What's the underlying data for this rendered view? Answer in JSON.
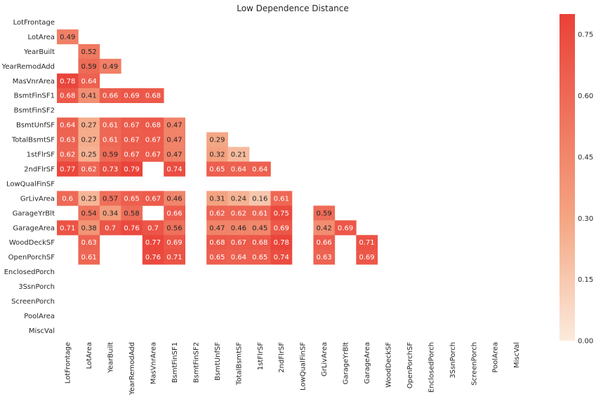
{
  "chart_data": {
    "type": "heatmap",
    "title": "Low Dependence Distance",
    "xlabel": "",
    "ylabel": "",
    "labels": [
      "LotFrontage",
      "LotArea",
      "YearBuilt",
      "YearRemodAdd",
      "MasVnrArea",
      "BsmtFinSF1",
      "BsmtFinSF2",
      "BsmtUnfSF",
      "TotalBsmtSF",
      "1stFlrSF",
      "2ndFlrSF",
      "LowQualFinSF",
      "GrLivArea",
      "GarageYrBlt",
      "GarageArea",
      "WoodDeckSF",
      "OpenPorchSF",
      "EnclosedPorch",
      "3SsnPorch",
      "ScreenPorch",
      "PoolArea",
      "MiscVal"
    ],
    "cells": [
      {
        "row": 1,
        "col": 0,
        "value": "0.49"
      },
      {
        "row": 2,
        "col": 1,
        "value": "0.52"
      },
      {
        "row": 3,
        "col": 1,
        "value": "0.59"
      },
      {
        "row": 3,
        "col": 2,
        "value": "0.49"
      },
      {
        "row": 4,
        "col": 0,
        "value": "0.78"
      },
      {
        "row": 4,
        "col": 1,
        "value": "0.64"
      },
      {
        "row": 5,
        "col": 0,
        "value": "0.68"
      },
      {
        "row": 5,
        "col": 1,
        "value": "0.41"
      },
      {
        "row": 5,
        "col": 2,
        "value": "0.66"
      },
      {
        "row": 5,
        "col": 3,
        "value": "0.69"
      },
      {
        "row": 5,
        "col": 4,
        "value": "0.68"
      },
      {
        "row": 7,
        "col": 0,
        "value": "0.64"
      },
      {
        "row": 7,
        "col": 1,
        "value": "0.27"
      },
      {
        "row": 7,
        "col": 2,
        "value": "0.61"
      },
      {
        "row": 7,
        "col": 3,
        "value": "0.67"
      },
      {
        "row": 7,
        "col": 4,
        "value": "0.68"
      },
      {
        "row": 7,
        "col": 5,
        "value": "0.47"
      },
      {
        "row": 8,
        "col": 0,
        "value": "0.63"
      },
      {
        "row": 8,
        "col": 1,
        "value": "0.27"
      },
      {
        "row": 8,
        "col": 2,
        "value": "0.61"
      },
      {
        "row": 8,
        "col": 3,
        "value": "0.67"
      },
      {
        "row": 8,
        "col": 4,
        "value": "0.67"
      },
      {
        "row": 8,
        "col": 5,
        "value": "0.47"
      },
      {
        "row": 8,
        "col": 7,
        "value": "0.29"
      },
      {
        "row": 9,
        "col": 0,
        "value": "0.62"
      },
      {
        "row": 9,
        "col": 1,
        "value": "0.25"
      },
      {
        "row": 9,
        "col": 2,
        "value": "0.59"
      },
      {
        "row": 9,
        "col": 3,
        "value": "0.67"
      },
      {
        "row": 9,
        "col": 4,
        "value": "0.67"
      },
      {
        "row": 9,
        "col": 5,
        "value": "0.47"
      },
      {
        "row": 9,
        "col": 7,
        "value": "0.32"
      },
      {
        "row": 9,
        "col": 8,
        "value": "0.21"
      },
      {
        "row": 10,
        "col": 0,
        "value": "0.77"
      },
      {
        "row": 10,
        "col": 1,
        "value": "0.62"
      },
      {
        "row": 10,
        "col": 2,
        "value": "0.73"
      },
      {
        "row": 10,
        "col": 3,
        "value": "0.79"
      },
      {
        "row": 10,
        "col": 5,
        "value": "0.74"
      },
      {
        "row": 10,
        "col": 7,
        "value": "0.65"
      },
      {
        "row": 10,
        "col": 8,
        "value": "0.64"
      },
      {
        "row": 10,
        "col": 9,
        "value": "0.64"
      },
      {
        "row": 12,
        "col": 0,
        "value": "0.6"
      },
      {
        "row": 12,
        "col": 1,
        "value": "0.23"
      },
      {
        "row": 12,
        "col": 2,
        "value": "0.57"
      },
      {
        "row": 12,
        "col": 3,
        "value": "0.65"
      },
      {
        "row": 12,
        "col": 4,
        "value": "0.67"
      },
      {
        "row": 12,
        "col": 5,
        "value": "0.46"
      },
      {
        "row": 12,
        "col": 7,
        "value": "0.31"
      },
      {
        "row": 12,
        "col": 8,
        "value": "0.24"
      },
      {
        "row": 12,
        "col": 9,
        "value": "0.16"
      },
      {
        "row": 12,
        "col": 10,
        "value": "0.61"
      },
      {
        "row": 13,
        "col": 1,
        "value": "0.54"
      },
      {
        "row": 13,
        "col": 2,
        "value": "0.34"
      },
      {
        "row": 13,
        "col": 3,
        "value": "0.58"
      },
      {
        "row": 13,
        "col": 5,
        "value": "0.66"
      },
      {
        "row": 13,
        "col": 7,
        "value": "0.62"
      },
      {
        "row": 13,
        "col": 8,
        "value": "0.62"
      },
      {
        "row": 13,
        "col": 9,
        "value": "0.61"
      },
      {
        "row": 13,
        "col": 10,
        "value": "0.75"
      },
      {
        "row": 13,
        "col": 12,
        "value": "0.59"
      },
      {
        "row": 14,
        "col": 0,
        "value": "0.71"
      },
      {
        "row": 14,
        "col": 1,
        "value": "0.38"
      },
      {
        "row": 14,
        "col": 2,
        "value": "0.7"
      },
      {
        "row": 14,
        "col": 3,
        "value": "0.76"
      },
      {
        "row": 14,
        "col": 4,
        "value": "0.7"
      },
      {
        "row": 14,
        "col": 5,
        "value": "0.56"
      },
      {
        "row": 14,
        "col": 7,
        "value": "0.47"
      },
      {
        "row": 14,
        "col": 8,
        "value": "0.46"
      },
      {
        "row": 14,
        "col": 9,
        "value": "0.45"
      },
      {
        "row": 14,
        "col": 10,
        "value": "0.69"
      },
      {
        "row": 14,
        "col": 12,
        "value": "0.42"
      },
      {
        "row": 14,
        "col": 13,
        "value": "0.69"
      },
      {
        "row": 15,
        "col": 1,
        "value": "0.63"
      },
      {
        "row": 15,
        "col": 4,
        "value": "0.77"
      },
      {
        "row": 15,
        "col": 5,
        "value": "0.69"
      },
      {
        "row": 15,
        "col": 7,
        "value": "0.68"
      },
      {
        "row": 15,
        "col": 8,
        "value": "0.67"
      },
      {
        "row": 15,
        "col": 9,
        "value": "0.68"
      },
      {
        "row": 15,
        "col": 10,
        "value": "0.78"
      },
      {
        "row": 15,
        "col": 12,
        "value": "0.66"
      },
      {
        "row": 15,
        "col": 14,
        "value": "0.71"
      },
      {
        "row": 16,
        "col": 1,
        "value": "0.61"
      },
      {
        "row": 16,
        "col": 4,
        "value": "0.76"
      },
      {
        "row": 16,
        "col": 5,
        "value": "0.71"
      },
      {
        "row": 16,
        "col": 7,
        "value": "0.65"
      },
      {
        "row": 16,
        "col": 8,
        "value": "0.64"
      },
      {
        "row": 16,
        "col": 9,
        "value": "0.65"
      },
      {
        "row": 16,
        "col": 10,
        "value": "0.74"
      },
      {
        "row": 16,
        "col": 12,
        "value": "0.63"
      },
      {
        "row": 16,
        "col": 14,
        "value": "0.69"
      }
    ],
    "colorbar": {
      "vmin": 0.0,
      "vmax": 0.8,
      "ticks": [
        "0.00",
        "0.15",
        "0.30",
        "0.45",
        "0.60",
        "0.75"
      ],
      "color_low": "#fbebdd",
      "color_mid": "#f4a582",
      "color_high": "#ea4138"
    },
    "text_color_dark": "#262626",
    "text_color_light": "#ffffff",
    "grid": false
  }
}
